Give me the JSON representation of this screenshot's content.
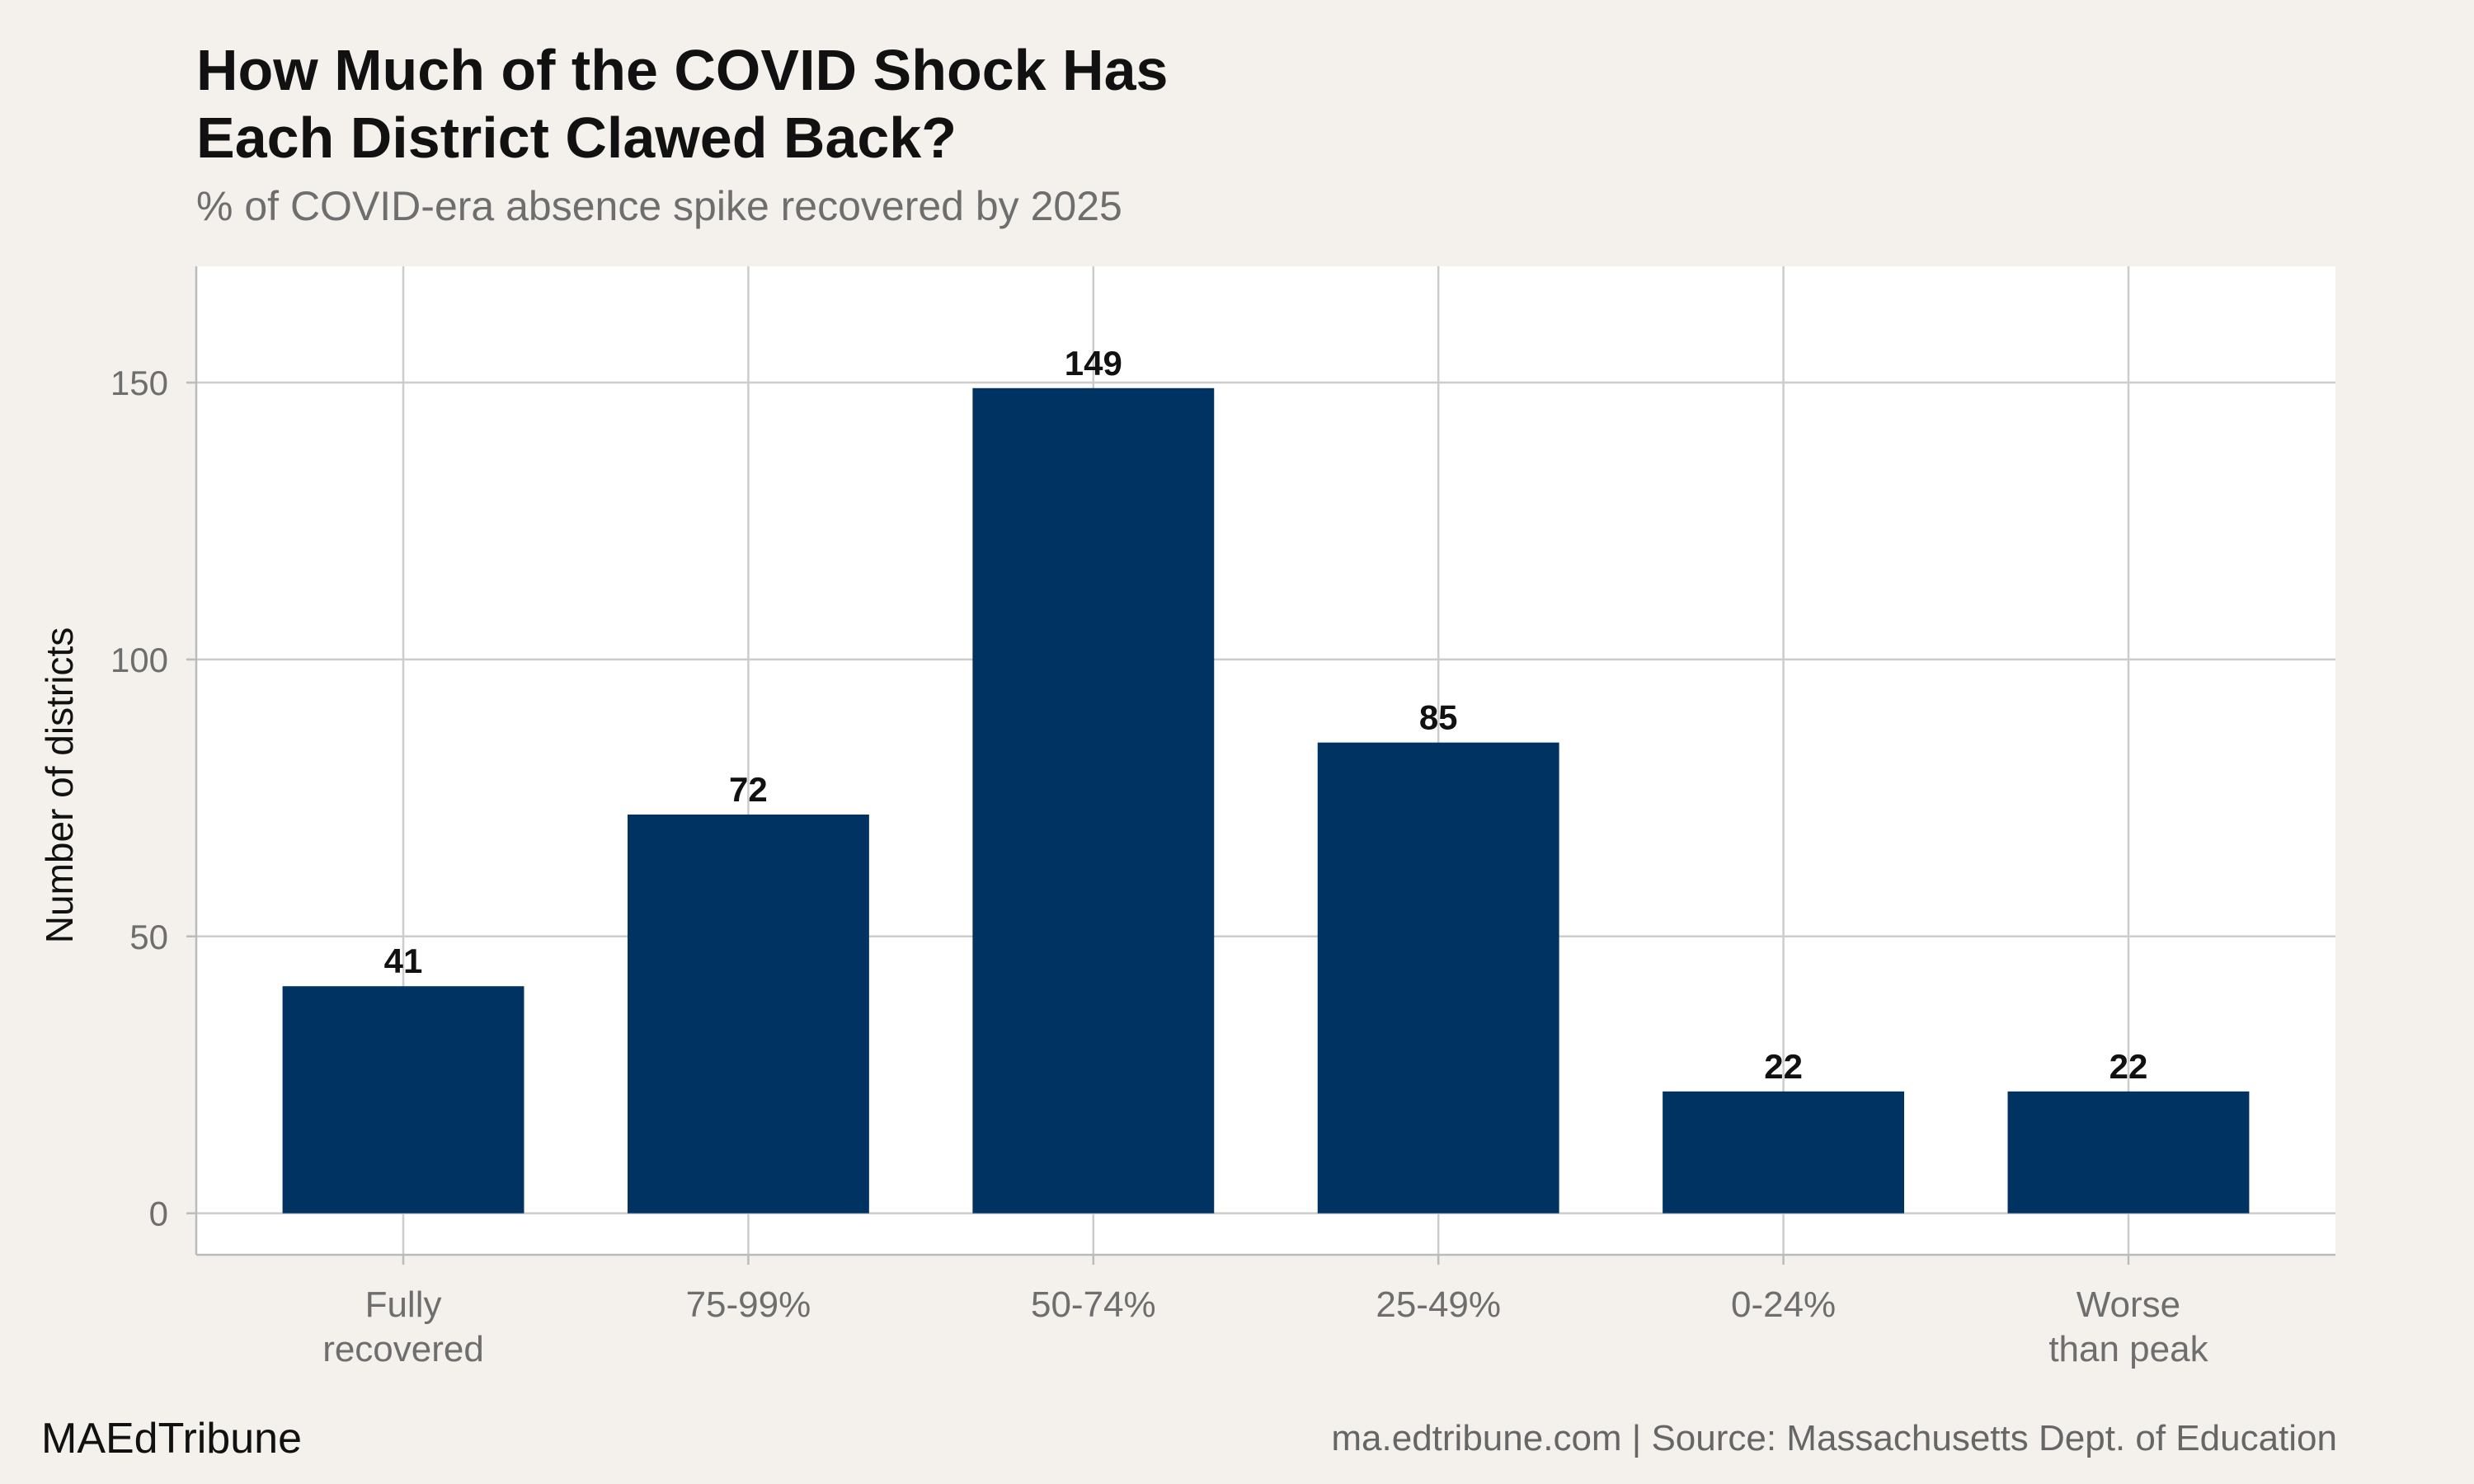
{
  "brand": "MAEdTribune",
  "footer": {
    "source": "ma.edtribune.com | Source: Massachusetts Dept. of Education"
  },
  "chart_data": {
    "type": "bar",
    "title_lines": [
      "How Much of the COVID Shock Has",
      "Each District Clawed Back?"
    ],
    "subtitle": "% of COVID-era absence spike recovered by 2025",
    "xlabel": "",
    "ylabel": "Number of districts",
    "categories": [
      [
        "Fully",
        "recovered"
      ],
      [
        "75-99%"
      ],
      [
        "50-74%"
      ],
      [
        "25-49%"
      ],
      [
        "0-24%"
      ],
      [
        "Worse",
        "than peak"
      ]
    ],
    "values": [
      41,
      72,
      149,
      85,
      22,
      22
    ],
    "data_labels": [
      "41",
      "72",
      "149",
      "85",
      "22",
      "22"
    ],
    "ylim": [
      -7.5,
      171
    ],
    "yticks": [
      0,
      50,
      100,
      150
    ],
    "ytick_labels": [
      "0",
      "50",
      "100",
      "150"
    ],
    "grid": true,
    "legend": "none",
    "colors": {
      "bar": "#003262",
      "panel": "#ffffff",
      "background": "#f4f1ec",
      "grid": "#cccccc",
      "axis_text": "#6e6e6e"
    }
  }
}
